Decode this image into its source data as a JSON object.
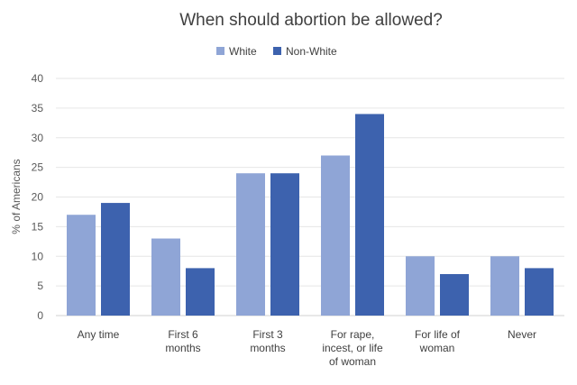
{
  "chart_data": {
    "type": "bar",
    "title": "When should abortion be allowed?",
    "xlabel": "",
    "ylabel": "% of Americans",
    "ylim": [
      0,
      40
    ],
    "yticks": [
      0,
      5,
      10,
      15,
      20,
      25,
      30,
      35,
      40
    ],
    "grid": true,
    "legend_position": "top",
    "categories": [
      "Any time",
      "First 6\nmonths",
      "First 3\nmonths",
      "For rape,\nincest, or life\nof woman",
      "For life of\nwoman",
      "Never"
    ],
    "series": [
      {
        "name": "White",
        "color": "#8FA5D6",
        "values": [
          17,
          13,
          24,
          27,
          10,
          10
        ]
      },
      {
        "name": "Non-White",
        "color": "#3D62AE",
        "values": [
          19,
          8,
          24,
          34,
          7,
          8
        ]
      }
    ]
  }
}
